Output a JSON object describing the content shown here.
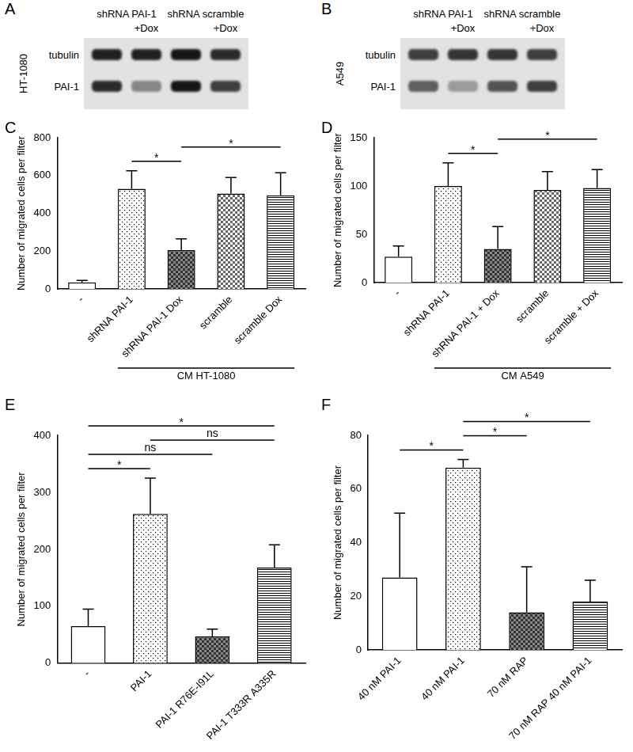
{
  "blots": [
    {
      "panel": "A",
      "cell_line": "HT-1080",
      "groups": [
        "shRNA PAI-1",
        "shRNA scramble"
      ],
      "lanes": [
        null,
        "+Dox",
        null,
        "+Dox"
      ],
      "rows": [
        {
          "name": "tubulin",
          "band_intensity": [
            0.95,
            0.95,
            1,
            0.9
          ]
        },
        {
          "name": "PAI-1",
          "band_intensity": [
            0.9,
            0.45,
            1,
            0.8
          ]
        }
      ]
    },
    {
      "panel": "B",
      "cell_line": "A549",
      "groups": [
        "shRNA PAI-1",
        "shRNA scramble"
      ],
      "lanes": [
        null,
        "+Dox",
        null,
        "+Dox"
      ],
      "rows": [
        {
          "name": "tubulin",
          "band_intensity": [
            0.8,
            0.85,
            0.85,
            0.8
          ]
        },
        {
          "name": "PAI-1",
          "band_intensity": [
            0.65,
            0.35,
            0.7,
            0.8
          ]
        }
      ]
    }
  ],
  "chart_data": [
    {
      "panel": "C",
      "type": "bar",
      "y_label": "Number of migrated cells per filter",
      "categories": [
        "-",
        "shRNA PAI-1",
        "shRNA PAI-1 Dox",
        "scramble",
        "scramble Dox"
      ],
      "values": [
        35,
        530,
        205,
        505,
        495
      ],
      "errors": [
        10,
        95,
        60,
        85,
        120
      ],
      "color": "#ffffff",
      "ylim": [
        0,
        800
      ],
      "yticks": [
        0,
        200,
        400,
        600,
        800
      ],
      "grid": false,
      "group_label": {
        "text": "CM HT-1080",
        "from": 1,
        "to": 4
      },
      "significance": [
        {
          "from": 1,
          "to": 2,
          "label": "*"
        },
        {
          "from": 2,
          "to": 4,
          "label": "*"
        }
      ]
    },
    {
      "panel": "D",
      "type": "bar",
      "y_label": "Number of migrated cells per filter",
      "categories": [
        "-",
        "shRNA PAI-1",
        "shRNA PAI-1 + Dox",
        "scramble",
        "scramble + Dox"
      ],
      "values": [
        27,
        100,
        35,
        96,
        98
      ],
      "errors": [
        11,
        24,
        23,
        19,
        19
      ],
      "color": "#ffffff",
      "ylim": [
        0,
        150
      ],
      "yticks": [
        0,
        50,
        100,
        150
      ],
      "grid": false,
      "group_label": {
        "text": "CM A549",
        "from": 1,
        "to": 4
      },
      "significance": [
        {
          "from": 1,
          "to": 2,
          "label": "*"
        },
        {
          "from": 2,
          "to": 4,
          "label": "*"
        }
      ]
    },
    {
      "panel": "E",
      "type": "bar",
      "y_label": "Number of migrated cells per filter",
      "categories": [
        "-",
        "PAI-1",
        "PAI-1 R76E-I91L",
        "PAI-1 T333R A335R"
      ],
      "values": [
        65,
        262,
        47,
        168
      ],
      "errors": [
        30,
        63,
        13,
        40
      ],
      "color": "#ffffff",
      "ylim": [
        0,
        400
      ],
      "yticks": [
        0,
        100,
        200,
        300,
        400
      ],
      "grid": false,
      "significance": [
        {
          "from": 0,
          "to": 1,
          "label": "*"
        },
        {
          "from": 0,
          "to": 2,
          "label": "ns"
        },
        {
          "from": 0,
          "to": 3,
          "label": "*"
        },
        {
          "from": 1,
          "to": 3,
          "label": "ns"
        }
      ]
    },
    {
      "panel": "F",
      "type": "bar",
      "y_label": "Number of migrated cells per filter",
      "categories": [
        "40 nM PAI-1",
        "40 nM PAI-1",
        "70 nM RAP",
        "70 nM RAP 40 nM PAI-1"
      ],
      "values": [
        27,
        68,
        14,
        18
      ],
      "errors": [
        24,
        3,
        17,
        8
      ],
      "color": "#ffffff",
      "ylim": [
        0,
        80
      ],
      "yticks": [
        0,
        20,
        40,
        60,
        80
      ],
      "grid": false,
      "significance": [
        {
          "from": 0,
          "to": 1,
          "label": "*"
        },
        {
          "from": 1,
          "to": 2,
          "label": "*"
        },
        {
          "from": 1,
          "to": 3,
          "label": "*"
        }
      ]
    }
  ]
}
